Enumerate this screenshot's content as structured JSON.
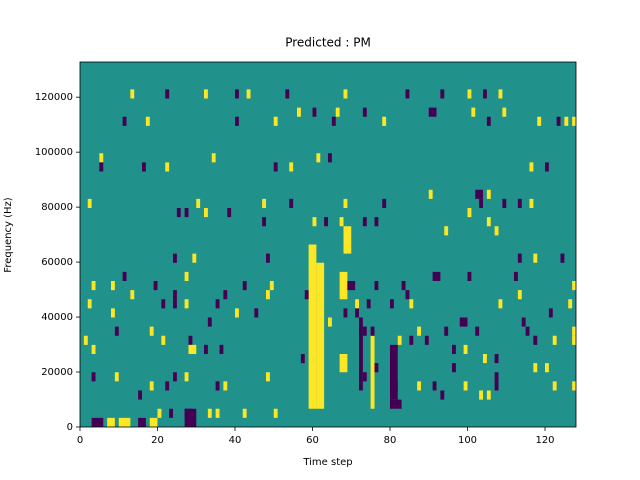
{
  "chart_data": {
    "type": "heatmap",
    "title": "Predicted : PM",
    "xlabel": "Time step",
    "ylabel": "Frequency (Hz)",
    "xlim": [
      0,
      128
    ],
    "ylim": [
      0,
      132800
    ],
    "xticks": [
      0,
      20,
      40,
      60,
      80,
      100,
      120
    ],
    "yticks": [
      0,
      20000,
      40000,
      60000,
      80000,
      100000,
      120000
    ],
    "colormap": [
      "#440154",
      "#21918c",
      "#fde725"
    ],
    "cells": [
      [
        59,
        61,
        6640,
        66400,
        1
      ],
      [
        61,
        63,
        6640,
        59760,
        1
      ],
      [
        67,
        69,
        46480,
        56440,
        1
      ],
      [
        67,
        69,
        19920,
        26560,
        1
      ],
      [
        68,
        70,
        63080,
        73040,
        1
      ],
      [
        80,
        82,
        9960,
        29880,
        -1
      ],
      [
        80,
        83,
        6640,
        9960,
        -1
      ],
      [
        72,
        73,
        13280,
        39840,
        -1
      ],
      [
        75,
        76,
        6640,
        33200,
        1
      ],
      [
        3,
        6,
        0,
        3320,
        -1
      ],
      [
        7,
        9,
        0,
        3320,
        1
      ],
      [
        10,
        13,
        0,
        3320,
        1
      ],
      [
        15,
        17,
        0,
        3320,
        -1
      ],
      [
        18,
        20,
        0,
        3320,
        1
      ],
      [
        27,
        30,
        0,
        6640,
        -1
      ],
      [
        13,
        14,
        119520,
        122840,
        1
      ],
      [
        22,
        23,
        119520,
        122840,
        -1
      ],
      [
        32,
        33,
        119520,
        122840,
        1
      ],
      [
        40,
        41,
        119520,
        122840,
        -1
      ],
      [
        43,
        44,
        119520,
        122840,
        1
      ],
      [
        53,
        54,
        119520,
        122840,
        -1
      ],
      [
        68,
        69,
        119520,
        122840,
        1
      ],
      [
        84,
        85,
        119520,
        122840,
        -1
      ],
      [
        93,
        94,
        119520,
        122840,
        -1
      ],
      [
        100,
        101,
        119520,
        122840,
        1
      ],
      [
        104,
        105,
        119520,
        122840,
        -1
      ],
      [
        108,
        109,
        119520,
        122840,
        1
      ],
      [
        56,
        57,
        112880,
        116200,
        1
      ],
      [
        60,
        61,
        112880,
        116200,
        -1
      ],
      [
        66,
        67,
        112880,
        116200,
        1
      ],
      [
        73,
        74,
        112880,
        116200,
        -1
      ],
      [
        90,
        92,
        112880,
        116200,
        -1
      ],
      [
        101,
        102,
        112880,
        116200,
        1
      ],
      [
        109,
        110,
        112880,
        116200,
        1
      ],
      [
        11,
        12,
        109560,
        112880,
        -1
      ],
      [
        17,
        18,
        109560,
        112880,
        1
      ],
      [
        40,
        41,
        109560,
        112880,
        -1
      ],
      [
        50,
        51,
        109560,
        112880,
        1
      ],
      [
        65,
        66,
        109560,
        112880,
        -1
      ],
      [
        78,
        79,
        109560,
        112880,
        1
      ],
      [
        105,
        106,
        109560,
        112880,
        -1
      ],
      [
        118,
        119,
        109560,
        112880,
        1
      ],
      [
        123,
        124,
        109560,
        112880,
        -1
      ],
      [
        125,
        126,
        109560,
        112880,
        1
      ],
      [
        127,
        128,
        109560,
        112880,
        1
      ],
      [
        5,
        6,
        96280,
        99600,
        1
      ],
      [
        34,
        35,
        96280,
        99600,
        1
      ],
      [
        61,
        62,
        96280,
        99600,
        1
      ],
      [
        64,
        65,
        96280,
        99600,
        -1
      ],
      [
        5,
        6,
        92960,
        96280,
        -1
      ],
      [
        16,
        17,
        92960,
        96280,
        -1
      ],
      [
        22,
        23,
        92960,
        96280,
        1
      ],
      [
        50,
        51,
        92960,
        96280,
        -1
      ],
      [
        54,
        55,
        92960,
        96280,
        1
      ],
      [
        116,
        117,
        92960,
        96280,
        1
      ],
      [
        120,
        121,
        92960,
        96280,
        -1
      ],
      [
        90,
        91,
        83000,
        86320,
        1
      ],
      [
        102,
        104,
        83000,
        86320,
        -1
      ],
      [
        105,
        106,
        83000,
        86320,
        1
      ],
      [
        2,
        3,
        79680,
        83000,
        1
      ],
      [
        30,
        31,
        79680,
        83000,
        1
      ],
      [
        47,
        48,
        79680,
        83000,
        1
      ],
      [
        54,
        55,
        79680,
        83000,
        -1
      ],
      [
        68,
        69,
        79680,
        83000,
        1
      ],
      [
        78,
        79,
        79680,
        83000,
        -1
      ],
      [
        103,
        104,
        79680,
        83000,
        -1
      ],
      [
        109,
        110,
        79680,
        83000,
        -1
      ],
      [
        113,
        114,
        79680,
        83000,
        -1
      ],
      [
        116,
        117,
        79680,
        83000,
        1
      ],
      [
        25,
        26,
        76360,
        79680,
        -1
      ],
      [
        27,
        28,
        76360,
        79680,
        -1
      ],
      [
        32,
        33,
        76360,
        79680,
        1
      ],
      [
        38,
        39,
        76360,
        79680,
        -1
      ],
      [
        100,
        101,
        76360,
        79680,
        1
      ],
      [
        47,
        48,
        73040,
        76360,
        -1
      ],
      [
        60,
        61,
        73040,
        76360,
        1
      ],
      [
        63,
        64,
        73040,
        76360,
        -1
      ],
      [
        67,
        68,
        73040,
        76360,
        1
      ],
      [
        73,
        74,
        73040,
        76360,
        -1
      ],
      [
        76,
        77,
        73040,
        76360,
        -1
      ],
      [
        105,
        106,
        73040,
        76360,
        1
      ],
      [
        94,
        95,
        69720,
        73040,
        1
      ],
      [
        107,
        108,
        69720,
        73040,
        1
      ],
      [
        24,
        25,
        59760,
        63080,
        -1
      ],
      [
        29,
        30,
        59760,
        63080,
        1
      ],
      [
        48,
        49,
        59760,
        63080,
        -1
      ],
      [
        113,
        114,
        59760,
        63080,
        -1
      ],
      [
        117,
        118,
        59760,
        63080,
        1
      ],
      [
        124,
        125,
        59760,
        63080,
        -1
      ],
      [
        11,
        12,
        53120,
        56440,
        -1
      ],
      [
        27,
        28,
        53120,
        56440,
        1
      ],
      [
        91,
        93,
        53120,
        56440,
        -1
      ],
      [
        100,
        101,
        53120,
        56440,
        -1
      ],
      [
        112,
        113,
        53120,
        56440,
        -1
      ],
      [
        3,
        4,
        49800,
        53120,
        1
      ],
      [
        8,
        9,
        49800,
        53120,
        1
      ],
      [
        19,
        20,
        49800,
        53120,
        -1
      ],
      [
        42,
        43,
        49800,
        53120,
        -1
      ],
      [
        49,
        50,
        49800,
        53120,
        1
      ],
      [
        69,
        71,
        49800,
        53120,
        -1
      ],
      [
        76,
        77,
        49800,
        53120,
        -1
      ],
      [
        83,
        84,
        49800,
        53120,
        -1
      ],
      [
        127,
        128,
        49800,
        53120,
        1
      ],
      [
        13,
        14,
        46480,
        49800,
        1
      ],
      [
        24,
        25,
        46480,
        49800,
        -1
      ],
      [
        37,
        38,
        46480,
        49800,
        -1
      ],
      [
        48,
        49,
        46480,
        49800,
        1
      ],
      [
        58,
        59,
        46480,
        49800,
        -1
      ],
      [
        84,
        85,
        46480,
        49800,
        -1
      ],
      [
        113,
        114,
        46480,
        49800,
        1
      ],
      [
        2,
        3,
        43160,
        46480,
        1
      ],
      [
        21,
        22,
        43160,
        46480,
        -1
      ],
      [
        24,
        25,
        43160,
        46480,
        -1
      ],
      [
        27,
        28,
        43160,
        46480,
        1
      ],
      [
        35,
        36,
        43160,
        46480,
        -1
      ],
      [
        71,
        72,
        43160,
        46480,
        1
      ],
      [
        74,
        75,
        43160,
        46480,
        -1
      ],
      [
        80,
        81,
        43160,
        46480,
        -1
      ],
      [
        85,
        86,
        43160,
        46480,
        1
      ],
      [
        108,
        109,
        43160,
        46480,
        1
      ],
      [
        126,
        127,
        43160,
        46480,
        1
      ],
      [
        8,
        9,
        39840,
        43160,
        1
      ],
      [
        40,
        41,
        39840,
        43160,
        1
      ],
      [
        45,
        46,
        39840,
        43160,
        -1
      ],
      [
        68,
        69,
        39840,
        43160,
        -1
      ],
      [
        71,
        72,
        39840,
        43160,
        -1
      ],
      [
        121,
        122,
        39840,
        43160,
        -1
      ],
      [
        33,
        34,
        36520,
        39840,
        -1
      ],
      [
        64,
        65,
        36520,
        39840,
        1
      ],
      [
        98,
        100,
        36520,
        39840,
        -1
      ],
      [
        114,
        115,
        36520,
        39840,
        -1
      ],
      [
        9,
        10,
        33200,
        36520,
        -1
      ],
      [
        18,
        19,
        33200,
        36520,
        1
      ],
      [
        73,
        74,
        33200,
        36520,
        -1
      ],
      [
        75,
        76,
        33200,
        36520,
        -1
      ],
      [
        87,
        88,
        33200,
        36520,
        1
      ],
      [
        94,
        95,
        33200,
        36520,
        -1
      ],
      [
        102,
        103,
        33200,
        36520,
        -1
      ],
      [
        115,
        116,
        33200,
        36520,
        -1
      ],
      [
        127,
        128,
        33200,
        36520,
        1
      ],
      [
        1,
        2,
        29880,
        33200,
        1
      ],
      [
        21,
        22,
        29880,
        33200,
        1
      ],
      [
        28,
        29,
        29880,
        33200,
        -1
      ],
      [
        82,
        83,
        29880,
        33200,
        1
      ],
      [
        85,
        86,
        29880,
        33200,
        -1
      ],
      [
        89,
        90,
        29880,
        33200,
        -1
      ],
      [
        117,
        118,
        29880,
        33200,
        -1
      ],
      [
        122,
        123,
        29880,
        33200,
        1
      ],
      [
        127,
        128,
        29880,
        33200,
        1
      ],
      [
        3,
        4,
        26560,
        29880,
        1
      ],
      [
        28,
        30,
        26560,
        29880,
        1
      ],
      [
        32,
        33,
        26560,
        29880,
        -1
      ],
      [
        36,
        37,
        26560,
        29880,
        -1
      ],
      [
        96,
        97,
        26560,
        29880,
        -1
      ],
      [
        99,
        100,
        26560,
        29880,
        1
      ],
      [
        57,
        58,
        23240,
        26560,
        -1
      ],
      [
        104,
        105,
        23240,
        26560,
        1
      ],
      [
        107,
        108,
        23240,
        26560,
        -1
      ],
      [
        76,
        77,
        19920,
        23240,
        -1
      ],
      [
        96,
        97,
        19920,
        23240,
        -1
      ],
      [
        117,
        118,
        19920,
        23240,
        1
      ],
      [
        120,
        121,
        19920,
        23240,
        1
      ],
      [
        3,
        4,
        16600,
        19920,
        -1
      ],
      [
        9,
        10,
        16600,
        19920,
        1
      ],
      [
        24,
        25,
        16600,
        19920,
        -1
      ],
      [
        27,
        28,
        16600,
        19920,
        1
      ],
      [
        48,
        49,
        16600,
        19920,
        1
      ],
      [
        73,
        74,
        16600,
        19920,
        -1
      ],
      [
        107,
        108,
        16600,
        19920,
        -1
      ],
      [
        18,
        19,
        13280,
        16600,
        1
      ],
      [
        22,
        23,
        13280,
        16600,
        -1
      ],
      [
        35,
        36,
        13280,
        16600,
        -1
      ],
      [
        37,
        38,
        13280,
        16600,
        1
      ],
      [
        81,
        82,
        13280,
        16600,
        -1
      ],
      [
        87,
        88,
        13280,
        16600,
        1
      ],
      [
        91,
        92,
        13280,
        16600,
        -1
      ],
      [
        99,
        100,
        13280,
        16600,
        1
      ],
      [
        107,
        108,
        13280,
        16600,
        -1
      ],
      [
        122,
        123,
        13280,
        16600,
        1
      ],
      [
        127,
        128,
        13280,
        16600,
        1
      ],
      [
        15,
        16,
        9960,
        13280,
        -1
      ],
      [
        93,
        94,
        9960,
        13280,
        -1
      ],
      [
        103,
        104,
        9960,
        13280,
        1
      ],
      [
        105,
        106,
        9960,
        13280,
        1
      ],
      [
        20,
        21,
        3320,
        6640,
        1
      ],
      [
        23,
        24,
        3320,
        6640,
        -1
      ],
      [
        27,
        29,
        3320,
        6640,
        -1
      ],
      [
        33,
        34,
        3320,
        6640,
        1
      ],
      [
        35,
        36,
        3320,
        6640,
        1
      ],
      [
        42,
        43,
        3320,
        6640,
        1
      ],
      [
        50,
        51,
        3320,
        6640,
        1
      ]
    ]
  }
}
